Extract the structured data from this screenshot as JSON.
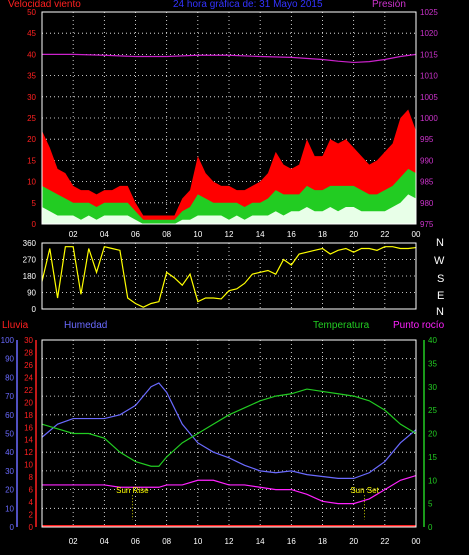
{
  "colors": {
    "grid": "#ffffff",
    "frame": "#ffffff",
    "axis_wind": "#ff2020",
    "axis_pressure": "#cc33cc",
    "wind_max": "#ff0000",
    "wind_avg": "#22cc22",
    "wind_min": "#e8ffe8",
    "pressure": "#cc22cc",
    "direction": "#ffff00",
    "rain": "#ff2020",
    "humidity": "#6a6aff",
    "temperature": "#22cc22",
    "dewpoint": "#ff22ff",
    "title": "#3333ff"
  },
  "header": {
    "left": "Velocidad viento",
    "center": "24 hora gráfica de: 31 Mayo 2015",
    "right": "Presión"
  },
  "direction_letters": [
    "N",
    "W",
    "S",
    "E",
    "N"
  ],
  "bottom_header": {
    "rain": "Lluvia",
    "humidity": "Humedad",
    "temperature": "Temperatura",
    "dewpoint": "Punto rocío"
  },
  "sun_labels": {
    "sunrise": "Sun Rise",
    "sunset": "Sun Set"
  },
  "chart_data": [
    {
      "type": "line",
      "name": "wind_pressure",
      "x_ticks": [
        "02",
        "04",
        "06",
        "08",
        "10",
        "12",
        "14",
        "16",
        "18",
        "20",
        "22",
        "00"
      ],
      "y_left": {
        "label": "Velocidad viento",
        "ticks": [
          0,
          5,
          10,
          15,
          20,
          25,
          30,
          35,
          40,
          45,
          50
        ],
        "ylim": [
          0,
          50
        ]
      },
      "y_right": {
        "label": "Presión",
        "ticks": [
          975,
          980,
          985,
          990,
          995,
          1000,
          1005,
          1010,
          1015,
          1020,
          1025
        ],
        "ylim": [
          975,
          1025
        ]
      },
      "wind_hours": [
        0.0,
        0.5,
        1.0,
        1.5,
        2.0,
        2.5,
        3.0,
        3.5,
        4.0,
        4.5,
        5.0,
        5.5,
        6.0,
        6.5,
        7.0,
        7.5,
        8.0,
        8.5,
        9.0,
        9.5,
        10.0,
        10.5,
        11.0,
        11.5,
        12.0,
        12.5,
        13.0,
        13.5,
        14.0,
        14.5,
        15.0,
        15.5,
        16.0,
        16.5,
        17.0,
        17.5,
        18.0,
        18.5,
        19.0,
        19.5,
        20.0,
        20.5,
        21.0,
        21.5,
        22.0,
        22.5,
        23.0,
        23.5,
        24.0
      ],
      "series": [
        {
          "name": "Velocidad viento (máx)",
          "values": [
            22,
            18,
            13,
            12,
            9,
            8,
            8,
            7,
            8,
            8,
            9,
            9,
            5,
            2,
            2,
            2,
            2,
            2,
            6,
            8,
            16,
            12,
            10,
            9,
            9,
            8,
            8,
            9,
            10,
            12,
            17,
            14,
            13,
            14,
            20,
            16,
            16,
            20,
            19,
            20,
            18,
            16,
            14,
            15,
            17,
            19,
            25,
            27,
            22
          ]
        },
        {
          "name": "Velocidad viento (media)",
          "values": [
            9,
            8,
            7,
            6,
            5,
            5,
            5,
            4,
            5,
            5,
            5,
            5,
            3,
            1,
            1,
            1,
            1,
            1,
            3,
            4,
            7,
            6,
            5,
            5,
            5,
            5,
            4,
            5,
            5,
            6,
            8,
            7,
            7,
            7,
            9,
            8,
            8,
            9,
            9,
            9,
            9,
            8,
            7,
            7,
            8,
            9,
            11,
            13,
            12
          ]
        },
        {
          "name": "Velocidad viento (mín)",
          "values": [
            4,
            3,
            2,
            2,
            2,
            1,
            2,
            1,
            2,
            2,
            2,
            2,
            1,
            0,
            0,
            0,
            0,
            0,
            1,
            1,
            2,
            2,
            2,
            2,
            1,
            2,
            1,
            2,
            2,
            2,
            3,
            2,
            3,
            3,
            4,
            3,
            3,
            4,
            3,
            4,
            4,
            3,
            3,
            3,
            3,
            4,
            5,
            7,
            6
          ]
        },
        {
          "name": "Presión",
          "hours": [
            0,
            2,
            4,
            6,
            8,
            10,
            12,
            14,
            16,
            18,
            19,
            20,
            21,
            22,
            23,
            24
          ],
          "values": [
            1015,
            1015,
            1014.8,
            1014.5,
            1014.5,
            1014.8,
            1014.8,
            1014.5,
            1014.3,
            1013.8,
            1013.4,
            1013.1,
            1013.3,
            1013.8,
            1014.5,
            1015
          ]
        }
      ]
    },
    {
      "type": "scatter",
      "name": "wind_direction",
      "y_ticks": [
        0,
        90,
        180,
        270,
        360
      ],
      "ylim": [
        0,
        360
      ],
      "hours": [
        0,
        0.5,
        1,
        1.5,
        2,
        2.5,
        3,
        3.5,
        4,
        4.5,
        5,
        5.5,
        6,
        6.5,
        7,
        7.5,
        8,
        8.5,
        9,
        9.5,
        10,
        10.5,
        11,
        11.5,
        12,
        12.5,
        13,
        13.5,
        14,
        14.5,
        15,
        15.5,
        16,
        16.5,
        17,
        17.5,
        18,
        18.5,
        19,
        19.5,
        20,
        20.5,
        21,
        21.5,
        22,
        22.5,
        23,
        23.5,
        24
      ],
      "values": [
        150,
        330,
        60,
        340,
        340,
        80,
        330,
        200,
        340,
        330,
        320,
        60,
        30,
        10,
        30,
        40,
        200,
        170,
        130,
        190,
        40,
        60,
        60,
        55,
        100,
        110,
        140,
        190,
        200,
        210,
        190,
        270,
        240,
        300,
        310,
        320,
        330,
        300,
        320,
        330,
        310,
        330,
        330,
        320,
        340,
        340,
        330,
        330,
        335
      ]
    },
    {
      "type": "line",
      "name": "temp_humidity",
      "x_ticks": [
        "02",
        "04",
        "06",
        "08",
        "10",
        "12",
        "14",
        "16",
        "18",
        "20",
        "22",
        "00"
      ],
      "y_humidity": {
        "label": "Humedad",
        "ticks": [
          0,
          10,
          20,
          30,
          40,
          50,
          60,
          70,
          80,
          90,
          100
        ],
        "ylim": [
          0,
          100
        ]
      },
      "y_rain": {
        "label": "Lluvia",
        "ticks": [
          0,
          2,
          4,
          6,
          8,
          10,
          12,
          14,
          16,
          18,
          20,
          22,
          24,
          26,
          28,
          30
        ],
        "ylim": [
          0,
          30
        ]
      },
      "y_temp": {
        "label": "Temperatura",
        "ticks": [
          0,
          5,
          10,
          15,
          20,
          25,
          30,
          35,
          40
        ],
        "ylim": [
          0,
          40
        ]
      },
      "hours": [
        0,
        1,
        2,
        3,
        4,
        5,
        6,
        7,
        7.5,
        8,
        9,
        10,
        11,
        12,
        13,
        14,
        15,
        16,
        17,
        18,
        19,
        20,
        21,
        22,
        23,
        24
      ],
      "series": [
        {
          "name": "Humedad",
          "values": [
            48,
            55,
            58,
            58,
            58,
            60,
            65,
            75,
            77,
            72,
            55,
            45,
            40,
            37,
            33,
            30,
            29,
            30,
            28,
            27,
            26,
            26,
            29,
            35,
            45,
            52
          ]
        },
        {
          "name": "Temperatura",
          "values": [
            22,
            21,
            20,
            20,
            19,
            16,
            14,
            13,
            13,
            15,
            18,
            20,
            22,
            24,
            25.5,
            27,
            28,
            28.5,
            29.5,
            29,
            28.5,
            28,
            27,
            25,
            22,
            20
          ]
        },
        {
          "name": "Punto rocío",
          "values": [
            9,
            9,
            9,
            9,
            9,
            8.5,
            8.5,
            8.5,
            8.5,
            9,
            9,
            10,
            10,
            9,
            9,
            8.5,
            8,
            8,
            7,
            5.5,
            5,
            5,
            6,
            8,
            10,
            11
          ]
        },
        {
          "name": "Lluvia",
          "values": [
            0,
            0,
            0,
            0,
            0,
            0,
            0,
            0,
            0,
            0,
            0,
            0,
            0,
            0,
            0,
            0,
            0,
            0,
            0,
            0,
            0,
            0,
            0,
            0,
            0,
            0
          ]
        }
      ],
      "sunrise_hour": 5.8,
      "sunset_hour": 20.7
    }
  ]
}
